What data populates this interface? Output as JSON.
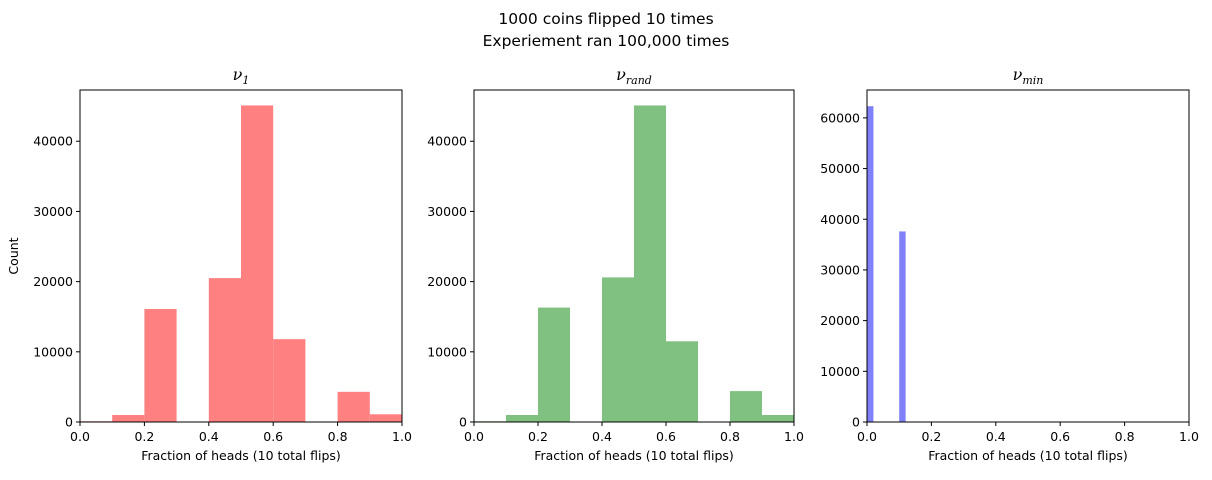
{
  "figure": {
    "title_line1": "1000 coins flipped 10 times",
    "title_line2": "Experiement ran 100,000 times"
  },
  "chart_data": [
    {
      "type": "bar",
      "title": "ν",
      "title_subscript": "1",
      "xlabel": "Fraction of heads (10 total flips)",
      "ylabel": "Count",
      "xlim": [
        0,
        1
      ],
      "ylim": [
        0,
        47300
      ],
      "xticks": [
        0.0,
        0.2,
        0.4,
        0.6,
        0.8,
        1.0
      ],
      "yticks": [
        0,
        10000,
        20000,
        30000,
        40000
      ],
      "color": "#ff8080",
      "bins": [
        {
          "x0": 0.0,
          "x1": 0.1,
          "count": 100
        },
        {
          "x0": 0.1,
          "x1": 0.2,
          "count": 1000
        },
        {
          "x0": 0.2,
          "x1": 0.3,
          "count": 16100
        },
        {
          "x0": 0.3,
          "x1": 0.4,
          "count": 0
        },
        {
          "x0": 0.4,
          "x1": 0.5,
          "count": 20500
        },
        {
          "x0": 0.5,
          "x1": 0.6,
          "count": 45100
        },
        {
          "x0": 0.6,
          "x1": 0.7,
          "count": 11800
        },
        {
          "x0": 0.7,
          "x1": 0.8,
          "count": 0
        },
        {
          "x0": 0.8,
          "x1": 0.9,
          "count": 4300
        },
        {
          "x0": 0.9,
          "x1": 1.0,
          "count": 1100
        }
      ]
    },
    {
      "type": "bar",
      "title": "ν",
      "title_subscript": "rand",
      "xlabel": "Fraction of heads (10 total flips)",
      "ylabel": "",
      "xlim": [
        0,
        1
      ],
      "ylim": [
        0,
        47300
      ],
      "xticks": [
        0.0,
        0.2,
        0.4,
        0.6,
        0.8,
        1.0
      ],
      "yticks": [
        0,
        10000,
        20000,
        30000,
        40000
      ],
      "color": "#80c080",
      "bins": [
        {
          "x0": 0.0,
          "x1": 0.1,
          "count": 100
        },
        {
          "x0": 0.1,
          "x1": 0.2,
          "count": 1000
        },
        {
          "x0": 0.2,
          "x1": 0.3,
          "count": 16300
        },
        {
          "x0": 0.3,
          "x1": 0.4,
          "count": 0
        },
        {
          "x0": 0.4,
          "x1": 0.5,
          "count": 20600
        },
        {
          "x0": 0.5,
          "x1": 0.6,
          "count": 45100
        },
        {
          "x0": 0.6,
          "x1": 0.7,
          "count": 11500
        },
        {
          "x0": 0.7,
          "x1": 0.8,
          "count": 0
        },
        {
          "x0": 0.8,
          "x1": 0.9,
          "count": 4400
        },
        {
          "x0": 0.9,
          "x1": 1.0,
          "count": 1000
        }
      ]
    },
    {
      "type": "bar",
      "title": "ν",
      "title_subscript": "min",
      "xlabel": "Fraction of heads (10 total flips)",
      "ylabel": "",
      "xlim": [
        0,
        1
      ],
      "ylim": [
        0,
        65500
      ],
      "xticks": [
        0.0,
        0.2,
        0.4,
        0.6,
        0.8,
        1.0
      ],
      "yticks": [
        0,
        10000,
        20000,
        30000,
        40000,
        50000,
        60000
      ],
      "color": "#8080f8",
      "bins": [
        {
          "x0": 0.0,
          "x1": 0.02,
          "count": 62300
        },
        {
          "x0": 0.02,
          "x1": 0.04,
          "count": 0
        },
        {
          "x0": 0.04,
          "x1": 0.06,
          "count": 0
        },
        {
          "x0": 0.06,
          "x1": 0.08,
          "count": 0
        },
        {
          "x0": 0.08,
          "x1": 0.1,
          "count": 0
        },
        {
          "x0": 0.1,
          "x1": 0.12,
          "count": 37600
        }
      ]
    }
  ]
}
